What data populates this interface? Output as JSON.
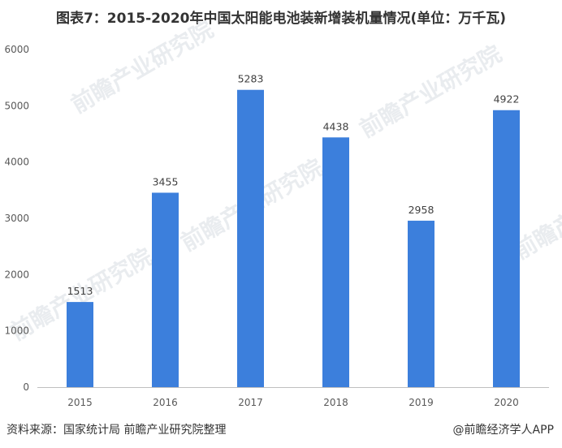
{
  "title": "图表7：2015-2020年中国太阳能电池装新增装机量情况(单位：万千瓦)",
  "watermark": "前瞻产业研究院",
  "footer": {
    "source": "资料来源：国家统计局 前瞻产业研究院整理",
    "brand": "@前瞻经济学人APP"
  },
  "chart_data": {
    "type": "bar",
    "categories": [
      "2015",
      "2016",
      "2017",
      "2018",
      "2019",
      "2020"
    ],
    "values": [
      1513,
      3455,
      5283,
      4438,
      2958,
      4922
    ],
    "ylim": [
      0,
      6000
    ],
    "yticks": [
      0,
      1000,
      2000,
      3000,
      4000,
      5000,
      6000
    ],
    "grid": false,
    "legend": "none",
    "bar_color": "#3c7fdc",
    "axis_color": "#bfbfbf"
  }
}
